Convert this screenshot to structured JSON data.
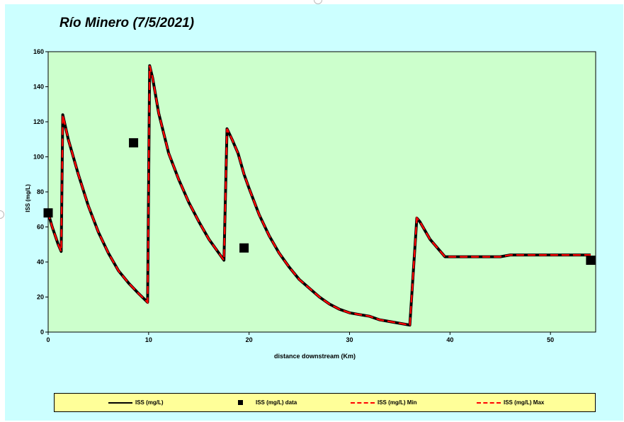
{
  "chart_data": {
    "type": "line",
    "title": "Río Minero (7/5/2021)",
    "xlabel": "distance downstream (Km)",
    "ylabel": "ISS (mg/L)",
    "xlim": [
      0,
      54.5
    ],
    "ylim": [
      0,
      160
    ],
    "xticks": [
      "0",
      "10",
      "20",
      "30",
      "40",
      "50"
    ],
    "yticks": [
      "0",
      "20",
      "40",
      "60",
      "80",
      "100",
      "120",
      "140",
      "160"
    ],
    "grid": false,
    "legend_position": "bottom",
    "series": [
      {
        "name": "ISS (mg/L)",
        "style": "solid",
        "color": "#000000",
        "points": [
          [
            0,
            68
          ],
          [
            0.4,
            60
          ],
          [
            1.0,
            50
          ],
          [
            1.3,
            46
          ],
          [
            1.45,
            124
          ],
          [
            2,
            110
          ],
          [
            3,
            90
          ],
          [
            4,
            72
          ],
          [
            5,
            57
          ],
          [
            6,
            45
          ],
          [
            7,
            35
          ],
          [
            8,
            28
          ],
          [
            9,
            22
          ],
          [
            9.9,
            17
          ],
          [
            10.1,
            152
          ],
          [
            10.4,
            145
          ],
          [
            11,
            125
          ],
          [
            12,
            102
          ],
          [
            13,
            87
          ],
          [
            14,
            74
          ],
          [
            15,
            63
          ],
          [
            16,
            53
          ],
          [
            17.5,
            41
          ],
          [
            17.8,
            116
          ],
          [
            18.3,
            110
          ],
          [
            18.9,
            102
          ],
          [
            19.5,
            90
          ],
          [
            20,
            82
          ],
          [
            21,
            67
          ],
          [
            22,
            55
          ],
          [
            23,
            45
          ],
          [
            24,
            37
          ],
          [
            25,
            30
          ],
          [
            26,
            25
          ],
          [
            27,
            20
          ],
          [
            28,
            16
          ],
          [
            29,
            13
          ],
          [
            30,
            11
          ],
          [
            31,
            10
          ],
          [
            32,
            9
          ],
          [
            33,
            7
          ],
          [
            34,
            6
          ],
          [
            35,
            5
          ],
          [
            36,
            4
          ],
          [
            36.7,
            65
          ],
          [
            37,
            63
          ],
          [
            38,
            53
          ],
          [
            39.5,
            43
          ],
          [
            40,
            43
          ],
          [
            45,
            43
          ],
          [
            46,
            44
          ],
          [
            50,
            44
          ],
          [
            54,
            44
          ]
        ]
      },
      {
        "name": "ISS (mg/L) data",
        "style": "marker",
        "color": "#000000",
        "points": [
          [
            0,
            68
          ],
          [
            8.5,
            108
          ],
          [
            19.5,
            48
          ],
          [
            54,
            41
          ]
        ]
      },
      {
        "name": "ISS (mg/L) Min",
        "style": "dashed",
        "color": "#ff0000",
        "points": [
          [
            0,
            68
          ],
          [
            0.4,
            60
          ],
          [
            1.0,
            50
          ],
          [
            1.3,
            46
          ],
          [
            1.45,
            124
          ],
          [
            2,
            110
          ],
          [
            3,
            90
          ],
          [
            4,
            72
          ],
          [
            5,
            57
          ],
          [
            6,
            45
          ],
          [
            7,
            35
          ],
          [
            8,
            28
          ],
          [
            9,
            22
          ],
          [
            9.9,
            17
          ],
          [
            10.1,
            152
          ],
          [
            10.4,
            145
          ],
          [
            11,
            125
          ],
          [
            12,
            102
          ],
          [
            13,
            87
          ],
          [
            14,
            74
          ],
          [
            15,
            63
          ],
          [
            16,
            53
          ],
          [
            17.5,
            41
          ],
          [
            17.8,
            116
          ],
          [
            18.3,
            110
          ],
          [
            18.9,
            102
          ],
          [
            19.5,
            90
          ],
          [
            20,
            82
          ],
          [
            21,
            67
          ],
          [
            22,
            55
          ],
          [
            23,
            45
          ],
          [
            24,
            37
          ],
          [
            25,
            30
          ],
          [
            26,
            25
          ],
          [
            27,
            20
          ],
          [
            28,
            16
          ],
          [
            29,
            13
          ],
          [
            30,
            11
          ],
          [
            31,
            10
          ],
          [
            32,
            9
          ],
          [
            33,
            7
          ],
          [
            34,
            6
          ],
          [
            35,
            5
          ],
          [
            36,
            4
          ],
          [
            36.7,
            65
          ],
          [
            37,
            63
          ],
          [
            38,
            53
          ],
          [
            39.5,
            43
          ],
          [
            40,
            43
          ],
          [
            45,
            43
          ],
          [
            46,
            44
          ],
          [
            50,
            44
          ],
          [
            54,
            44
          ]
        ]
      },
      {
        "name": "ISS (mg/L) Max",
        "style": "dashed",
        "color": "#ff0000",
        "points": [
          [
            0,
            68
          ],
          [
            0.4,
            60
          ],
          [
            1.0,
            50
          ],
          [
            1.3,
            46
          ],
          [
            1.45,
            124
          ],
          [
            2,
            110
          ],
          [
            3,
            90
          ],
          [
            4,
            72
          ],
          [
            5,
            57
          ],
          [
            6,
            45
          ],
          [
            7,
            35
          ],
          [
            8,
            28
          ],
          [
            9,
            22
          ],
          [
            9.9,
            17
          ],
          [
            10.1,
            152
          ],
          [
            10.4,
            145
          ],
          [
            11,
            125
          ],
          [
            12,
            102
          ],
          [
            13,
            87
          ],
          [
            14,
            74
          ],
          [
            15,
            63
          ],
          [
            16,
            53
          ],
          [
            17.5,
            41
          ],
          [
            17.8,
            116
          ],
          [
            18.3,
            110
          ],
          [
            18.9,
            102
          ],
          [
            19.5,
            90
          ],
          [
            20,
            82
          ],
          [
            21,
            67
          ],
          [
            22,
            55
          ],
          [
            23,
            45
          ],
          [
            24,
            37
          ],
          [
            25,
            30
          ],
          [
            26,
            25
          ],
          [
            27,
            20
          ],
          [
            28,
            16
          ],
          [
            29,
            13
          ],
          [
            30,
            11
          ],
          [
            31,
            10
          ],
          [
            32,
            9
          ],
          [
            33,
            7
          ],
          [
            34,
            6
          ],
          [
            35,
            5
          ],
          [
            36,
            4
          ],
          [
            36.7,
            65
          ],
          [
            37,
            63
          ],
          [
            38,
            53
          ],
          [
            39.5,
            43
          ],
          [
            40,
            43
          ],
          [
            45,
            43
          ],
          [
            46,
            44
          ],
          [
            50,
            44
          ],
          [
            54,
            44
          ]
        ]
      }
    ]
  },
  "colors": {
    "frame_background": "#ccffff",
    "plot_background": "#ccffcc",
    "legend_background": "#ffff99"
  },
  "legend": [
    {
      "label": "ISS (mg/L)",
      "style": "solid"
    },
    {
      "label": "ISS (mg/L) data",
      "style": "marker"
    },
    {
      "label": "ISS (mg/L) Min",
      "style": "dashed"
    },
    {
      "label": "ISS (mg/L) Max",
      "style": "dashed"
    }
  ]
}
